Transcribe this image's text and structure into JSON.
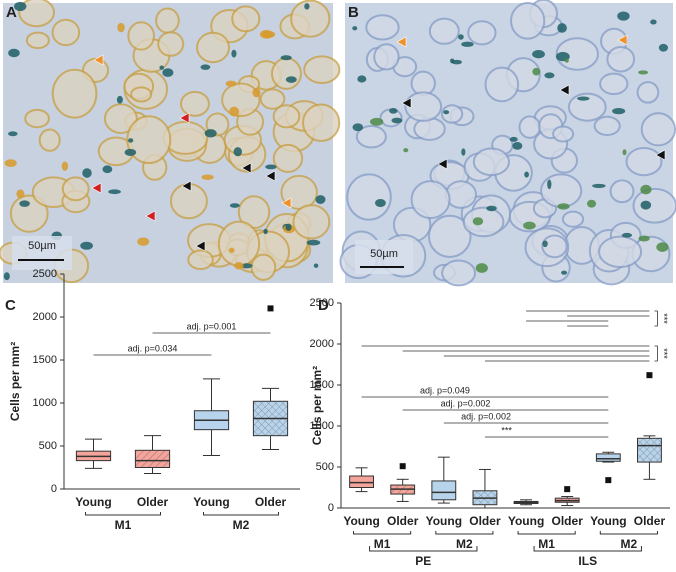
{
  "panels": {
    "labels": [
      "A",
      "B",
      "C",
      "D"
    ],
    "scale_bars": [
      "50µm",
      "50µm"
    ]
  },
  "chart_data": [
    {
      "type": "box",
      "ylabel": "Cells per mm²",
      "categories": [
        "Young",
        "Older",
        "Young",
        "Older"
      ],
      "groups": [
        "M1",
        "M2"
      ],
      "colors": [
        "#f4a49a",
        "#f4a49a",
        "#b8d4ec",
        "#b8d4ec"
      ],
      "hatched": [
        false,
        true,
        false,
        true
      ],
      "boxes": [
        {
          "min": 240,
          "q1": 330,
          "median": 380,
          "q3": 440,
          "max": 580,
          "outliers": []
        },
        {
          "min": 180,
          "q1": 250,
          "median": 330,
          "q3": 450,
          "max": 620,
          "outliers": []
        },
        {
          "min": 390,
          "q1": 690,
          "median": 800,
          "q3": 910,
          "max": 1280,
          "outliers": []
        },
        {
          "min": 460,
          "q1": 620,
          "median": 820,
          "q3": 1020,
          "max": 1170,
          "outliers": [
            2100
          ]
        }
      ],
      "annotations": [
        "adj. p=0.034",
        "adj. p=0.001"
      ],
      "ylim": [
        0,
        2500
      ],
      "yticks": [
        0,
        500,
        1000,
        1500,
        2000,
        2500
      ]
    },
    {
      "type": "box",
      "ylabel": "Cells per mm²",
      "categories": [
        "Young",
        "Older",
        "Young",
        "Older",
        "Young",
        "Older",
        "Young",
        "Older"
      ],
      "groups": [
        "M1",
        "M2",
        "M1",
        "M2"
      ],
      "supergroups": [
        "PE",
        "ILS"
      ],
      "colors": [
        "#f4a49a",
        "#f4a49a",
        "#b8d4ec",
        "#b8d4ec",
        "#f4a49a",
        "#f4a49a",
        "#b8d4ec",
        "#b8d4ec"
      ],
      "hatched": [
        false,
        true,
        false,
        true,
        false,
        true,
        false,
        true
      ],
      "boxes": [
        {
          "min": 200,
          "q1": 250,
          "median": 310,
          "q3": 390,
          "max": 490,
          "outliers": []
        },
        {
          "min": 80,
          "q1": 170,
          "median": 230,
          "q3": 280,
          "max": 350,
          "outliers": [
            510
          ]
        },
        {
          "min": 60,
          "q1": 100,
          "median": 190,
          "q3": 330,
          "max": 620,
          "outliers": []
        },
        {
          "min": 0,
          "q1": 40,
          "median": 120,
          "q3": 210,
          "max": 470,
          "outliers": []
        },
        {
          "min": 40,
          "q1": 55,
          "median": 70,
          "q3": 80,
          "max": 100,
          "outliers": []
        },
        {
          "min": 30,
          "q1": 70,
          "median": 90,
          "q3": 120,
          "max": 140,
          "outliers": [
            230
          ]
        },
        {
          "min": 560,
          "q1": 570,
          "median": 600,
          "q3": 660,
          "max": 680,
          "outliers": [
            340
          ]
        },
        {
          "min": 350,
          "q1": 560,
          "median": 760,
          "q3": 850,
          "max": 880,
          "outliers": [
            1620
          ]
        }
      ],
      "annotations": [
        "adj. p=0.049",
        "adj. p=0.002",
        "adj. p=0.002",
        "***",
        "***",
        "***"
      ],
      "ylim": [
        0,
        2500
      ],
      "yticks": [
        0,
        500,
        1000,
        1500,
        2000,
        2500
      ]
    }
  ]
}
